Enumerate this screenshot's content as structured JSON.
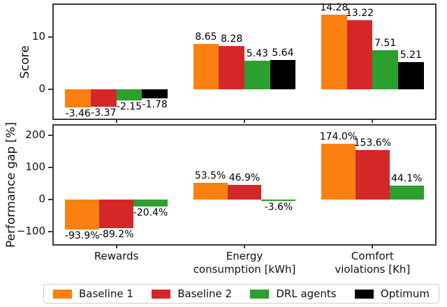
{
  "figure": {
    "background": "#ffffff",
    "spine_color": "#3a3a3a"
  },
  "colors": {
    "baseline1": "#fb8010",
    "baseline2": "#d62728",
    "drl_agents": "#2ca02c",
    "optimum": "#000000"
  },
  "legend": {
    "entries": [
      {
        "label": "Baseline 1",
        "color": "#fb8010",
        "icon": "swatch-baseline1"
      },
      {
        "label": "Baseline 2",
        "color": "#d62728",
        "icon": "swatch-baseline2"
      },
      {
        "label": "DRL agents",
        "color": "#2ca02c",
        "icon": "swatch-drl-agents"
      },
      {
        "label": "Optimum",
        "color": "#000000",
        "icon": "swatch-optimum"
      }
    ],
    "position": "bottom"
  },
  "x_axis": {
    "categories": [
      "Rewards",
      "Energy consumption [kWh]",
      "Comfort violations [Kh]"
    ],
    "category_keys": [
      "rewards",
      "energy-consumption",
      "comfort-violations"
    ],
    "tick_label_lines": [
      [
        "Rewards"
      ],
      [
        "Energy",
        "consumption [kWh]"
      ],
      [
        "Comfort",
        "violations [Kh]"
      ]
    ]
  },
  "chart_data": [
    {
      "type": "bar",
      "title": "",
      "ylabel": "Score",
      "categories": [
        "Rewards",
        "Energy consumption [kWh]",
        "Comfort violations [Kh]"
      ],
      "series": [
        {
          "name": "Baseline 1",
          "color": "#fb8010",
          "values": [
            -3.46,
            8.65,
            14.28
          ],
          "labels": [
            "-3.46",
            "8.65",
            "14.28"
          ]
        },
        {
          "name": "Baseline 2",
          "color": "#d62728",
          "values": [
            -3.37,
            8.28,
            13.22
          ],
          "labels": [
            "-3.37",
            "8.28",
            "13.22"
          ]
        },
        {
          "name": "DRL agents",
          "color": "#2ca02c",
          "values": [
            -2.15,
            5.43,
            7.51
          ],
          "labels": [
            "-2.15",
            "5.43",
            "7.51"
          ]
        },
        {
          "name": "Optimum",
          "color": "#000000",
          "values": [
            -1.78,
            5.64,
            5.21
          ],
          "labels": [
            "-1.78",
            "5.64",
            "5.21"
          ]
        }
      ],
      "yticks": [
        {
          "value": 10,
          "label": "10"
        },
        {
          "value": 0,
          "label": "0"
        }
      ],
      "ylim": [
        -5.9,
        16.4
      ],
      "grid": false,
      "bar_group_fraction": 0.8
    },
    {
      "type": "bar",
      "title": "",
      "ylabel": "Performance gap [%]",
      "categories": [
        "Rewards",
        "Energy consumption [kWh]",
        "Comfort violations [Kh]"
      ],
      "series": [
        {
          "name": "Baseline 1",
          "color": "#fb8010",
          "values": [
            -93.9,
            53.5,
            174.0
          ],
          "labels": [
            "-93.9%",
            "53.5%",
            "174.0%"
          ]
        },
        {
          "name": "Baseline 2",
          "color": "#d62728",
          "values": [
            -89.2,
            46.9,
            153.6
          ],
          "labels": [
            "-89.2%",
            "46.9%",
            "153.6%"
          ]
        },
        {
          "name": "DRL agents",
          "color": "#2ca02c",
          "values": [
            -20.4,
            -3.6,
            44.1
          ],
          "labels": [
            "-20.4%",
            "-3.6%",
            "44.1%"
          ]
        }
      ],
      "yticks": [
        {
          "value": 200,
          "label": "200"
        },
        {
          "value": 100,
          "label": "100"
        },
        {
          "value": 0,
          "label": "0"
        },
        {
          "value": -100,
          "label": "−100"
        }
      ],
      "ylim": [
        -143,
        235
      ],
      "grid": false,
      "bar_group_fraction": 0.8
    }
  ]
}
